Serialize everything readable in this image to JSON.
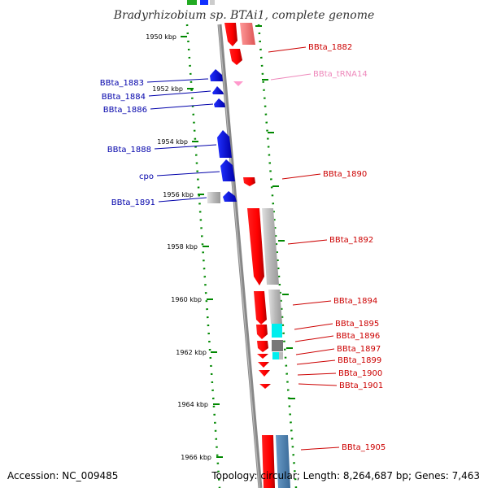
{
  "title": "Bradyrhizobium sp. BTAi1, complete genome",
  "ticks": [
    "1950 kbp",
    "1952 kbp",
    "1954 kbp",
    "1956 kbp",
    "1958 kbp",
    "1960 kbp",
    "1962 kbp",
    "1964 kbp",
    "1966 kbp"
  ],
  "left_genes": [
    "BBta_1883",
    "BBta_1884",
    "BBta_1886",
    "BBta_1888",
    "cpo",
    "BBta_1891"
  ],
  "right_genes": [
    "BBta_1882",
    "BBta_1890",
    "BBta_1892",
    "BBta_1894",
    "BBta_1895",
    "BBta_1896",
    "BBta_1897",
    "BBta_1899",
    "BBta_1900",
    "BBta_1901",
    "BBta_1905"
  ],
  "trna_gene": "BBta_tRNA14",
  "footer": {
    "accession": "Accession: NC_009485",
    "summary": "Topology: circular; Length: 8,264,687 bp; Genes: 7,463"
  },
  "colors": {
    "backbone": "#888888",
    "forward_gene": "#ff0000",
    "reverse_gene": "#0000ff",
    "trna": "#ff99cc",
    "ruler": "#008800",
    "gc_high": "#00ffff",
    "gc_neutral": "#aaaaaa"
  }
}
